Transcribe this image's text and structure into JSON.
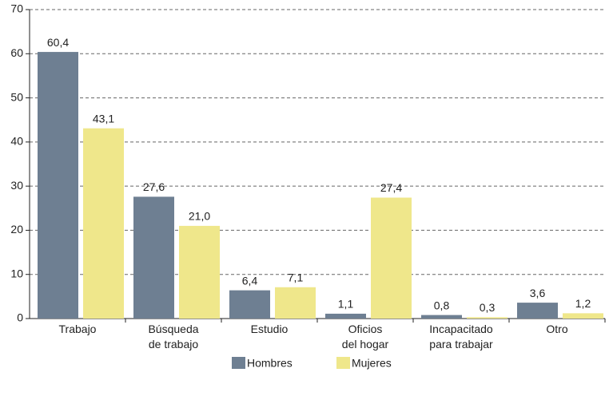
{
  "chart_data": {
    "type": "bar",
    "categories": [
      [
        "Trabajo"
      ],
      [
        "Búsqueda",
        "de trabajo"
      ],
      [
        "Estudio"
      ],
      [
        "Oficios",
        "del hogar"
      ],
      [
        "Incapacitado",
        "para trabajar"
      ],
      [
        "Otro"
      ]
    ],
    "series": [
      {
        "name": "Hombres",
        "color": "#6e7f92",
        "values": [
          60.4,
          27.6,
          6.4,
          1.1,
          0.8,
          3.6
        ],
        "value_labels": [
          "60,4",
          "27,6",
          "6,4",
          "1,1",
          "0,8",
          "3,6"
        ]
      },
      {
        "name": "Mujeres",
        "color": "#efe78b",
        "values": [
          43.1,
          21.0,
          7.1,
          27.4,
          0.3,
          1.2
        ],
        "value_labels": [
          "43,1",
          "21,0",
          "7,1",
          "27,4",
          "0,3",
          "1,2"
        ]
      }
    ],
    "ylim": [
      0,
      70
    ],
    "yticks": [
      0,
      10,
      20,
      30,
      40,
      50,
      60,
      70
    ],
    "grid": true
  }
}
